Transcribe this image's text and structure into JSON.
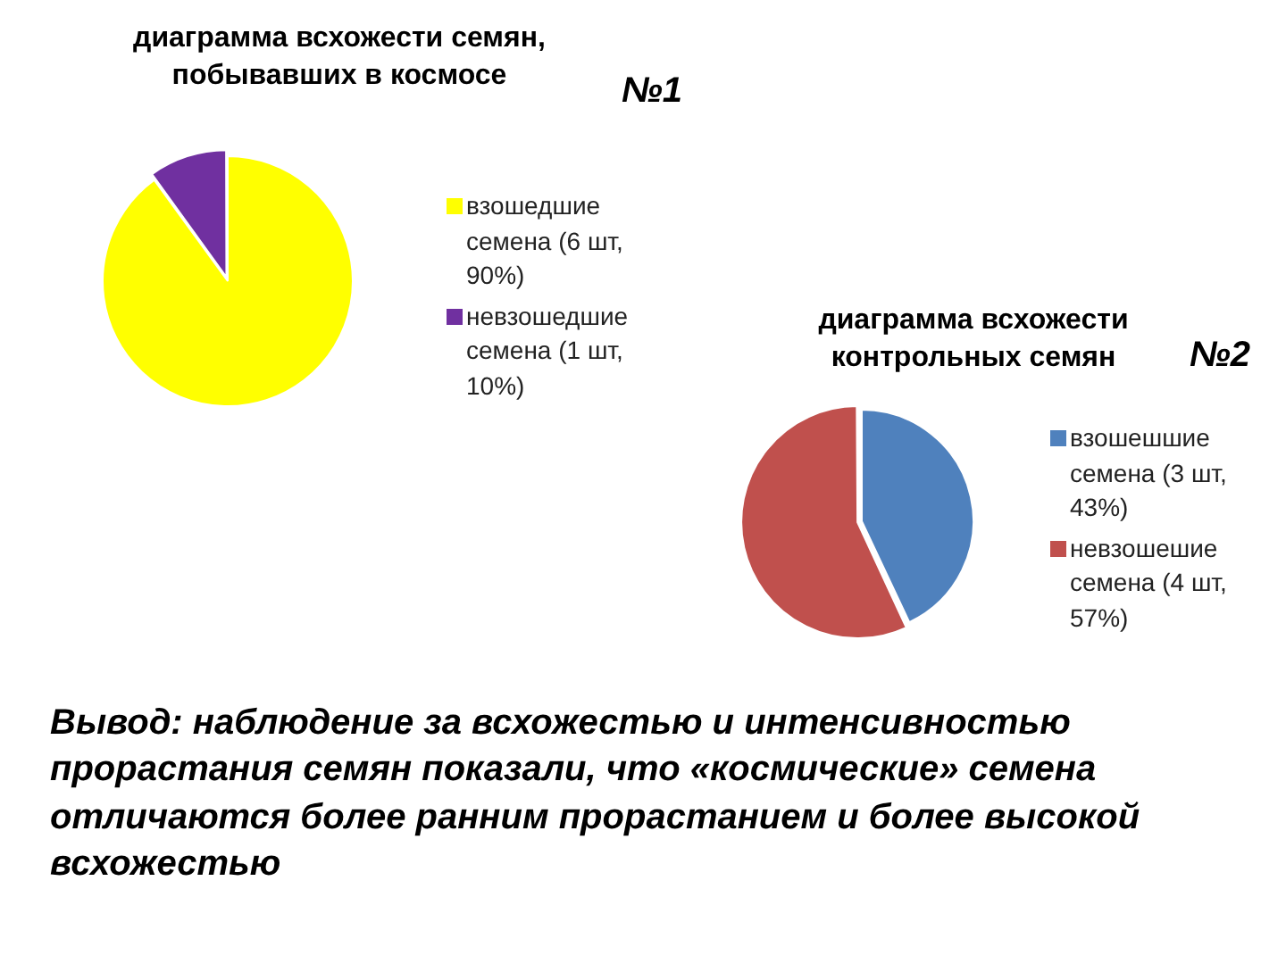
{
  "chart_data": [
    {
      "type": "pie",
      "title": "диаграмма всхожести семян, побывавших в космосе",
      "annotations": [
        "№1"
      ],
      "categories": [
        "взошедшие семена (6 шт, 90%)",
        "невзошедшие семена (1 шт, 10%)"
      ],
      "values": [
        90,
        10
      ],
      "colors": [
        "#ffff00",
        "#7030a0"
      ],
      "legend": "right"
    },
    {
      "type": "pie",
      "title": "диаграмма всхожести контрольных семян",
      "annotations": [
        "№2"
      ],
      "categories": [
        "взошешшие семена (3 шт, 43%)",
        "невзошешие семена (4 шт, 57%)"
      ],
      "values": [
        43,
        57
      ],
      "colors": [
        "#4f81bd",
        "#c0504d"
      ],
      "legend": "right"
    },
    {
      "type": "other",
      "annotations": [
        "Вывод: наблюдение за всхожестью и интенсивностью прорастания семян показали, что «космические» семена отличаются более ранним прорастанием и более высокой всхожестью"
      ]
    }
  ]
}
